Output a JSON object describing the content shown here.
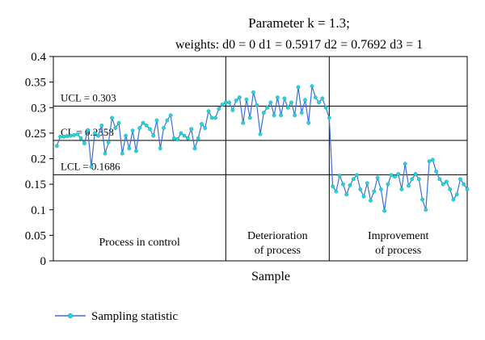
{
  "chart_data": {
    "type": "line",
    "title_line1": "Parameter k = 1.3;",
    "title_line2": "weights: d0 = 0 d1 = 0.5917 d2 = 0.7692 d3 = 1",
    "xlabel": "Sample",
    "ylabel": "",
    "ylim": [
      0,
      0.4
    ],
    "xlim": [
      0,
      120
    ],
    "yticks": [
      "0",
      "0.05",
      "0.1",
      "0.15",
      "0.2",
      "0.25",
      "0.3",
      "0.35",
      "0.4"
    ],
    "grid": false,
    "legend_position": "bottom-left",
    "lines": [
      {
        "label": "UCL = 0.303",
        "value": 0.303
      },
      {
        "label": "CL = 0.2358",
        "value": 0.2358
      },
      {
        "label": "LCL = 0.1686",
        "value": 0.1686
      }
    ],
    "phase_boundaries": [
      50,
      80
    ],
    "regions": [
      {
        "label_line1": "Process in control",
        "label_line2": ""
      },
      {
        "label_line1": "Deterioration",
        "label_line2": "of process"
      },
      {
        "label_line1": "Improvement",
        "label_line2": "of process"
      }
    ],
    "series": [
      {
        "name": "Sampling statistic",
        "color": "#3a6fd8",
        "marker_color": "#20d6d6",
        "x": [
          1,
          2,
          3,
          4,
          5,
          6,
          7,
          8,
          9,
          10,
          11,
          12,
          13,
          14,
          15,
          16,
          17,
          18,
          19,
          20,
          21,
          22,
          23,
          24,
          25,
          26,
          27,
          28,
          29,
          30,
          31,
          32,
          33,
          34,
          35,
          36,
          37,
          38,
          39,
          40,
          41,
          42,
          43,
          44,
          45,
          46,
          47,
          48,
          49,
          50,
          51,
          52,
          53,
          54,
          55,
          56,
          57,
          58,
          59,
          60,
          61,
          62,
          63,
          64,
          65,
          66,
          67,
          68,
          69,
          70,
          71,
          72,
          73,
          74,
          75,
          76,
          77,
          78,
          79,
          80,
          81,
          82,
          83,
          84,
          85,
          86,
          87,
          88,
          89,
          90,
          91,
          92,
          93,
          94,
          95,
          96,
          97,
          98,
          99,
          100,
          101,
          102,
          103,
          104,
          105,
          106,
          107,
          108,
          109,
          110,
          111,
          112,
          113,
          114,
          115,
          116,
          117,
          118,
          119,
          120
        ],
        "y": [
          0.225,
          0.243,
          0.243,
          0.244,
          0.245,
          0.246,
          0.248,
          0.24,
          0.23,
          0.256,
          0.184,
          0.25,
          0.245,
          0.265,
          0.21,
          0.232,
          0.28,
          0.26,
          0.27,
          0.21,
          0.245,
          0.22,
          0.255,
          0.215,
          0.26,
          0.27,
          0.265,
          0.258,
          0.245,
          0.275,
          0.22,
          0.26,
          0.275,
          0.285,
          0.24,
          0.238,
          0.25,
          0.245,
          0.24,
          0.258,
          0.22,
          0.24,
          0.268,
          0.26,
          0.293,
          0.28,
          0.28,
          0.298,
          0.306,
          0.31,
          0.31,
          0.295,
          0.314,
          0.32,
          0.27,
          0.316,
          0.28,
          0.33,
          0.305,
          0.248,
          0.29,
          0.3,
          0.31,
          0.285,
          0.32,
          0.285,
          0.318,
          0.3,
          0.31,
          0.285,
          0.34,
          0.29,
          0.315,
          0.27,
          0.342,
          0.32,
          0.31,
          0.318,
          0.3,
          0.28,
          0.146,
          0.136,
          0.167,
          0.15,
          0.13,
          0.148,
          0.16,
          0.168,
          0.14,
          0.126,
          0.152,
          0.118,
          0.136,
          0.163,
          0.14,
          0.098,
          0.15,
          0.168,
          0.165,
          0.17,
          0.14,
          0.19,
          0.147,
          0.16,
          0.17,
          0.16,
          0.12,
          0.1,
          0.195,
          0.198,
          0.175,
          0.16,
          0.15,
          0.155,
          0.14,
          0.12,
          0.13,
          0.16,
          0.15,
          0.14
        ]
      }
    ]
  }
}
